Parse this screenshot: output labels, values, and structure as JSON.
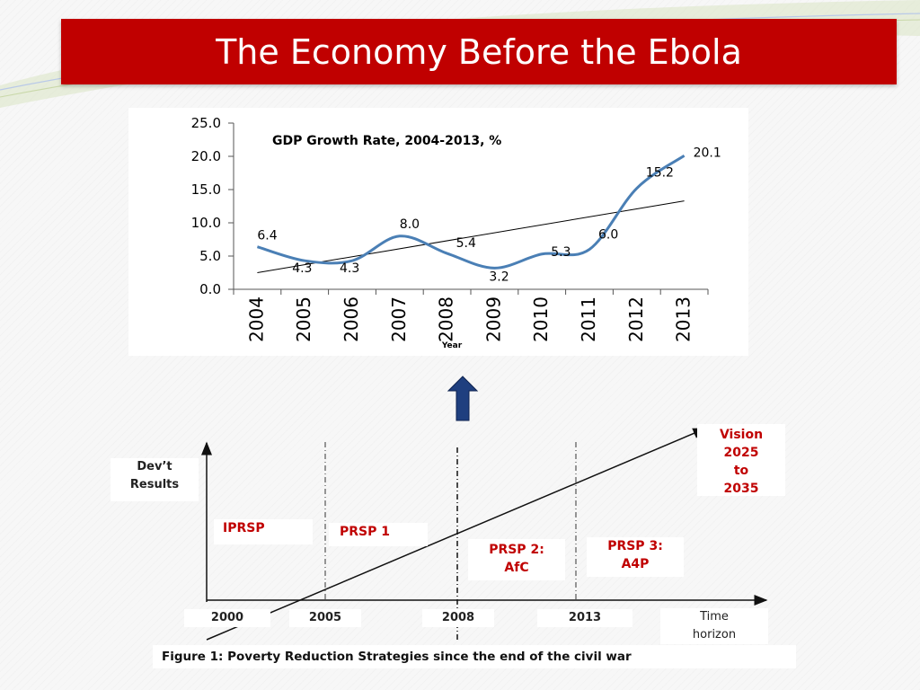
{
  "slide": {
    "title": "The Economy Before the Ebola"
  },
  "colors": {
    "title_bar": "#c00000",
    "series_line": "#4a7fb5",
    "trend_line": "#000000",
    "arrow": "#1f3f7f",
    "label_red": "#c00000"
  },
  "chart_data": [
    {
      "type": "line",
      "title": "GDP Growth Rate, 2004-2013, %",
      "xlabel": "Year",
      "ylabel": "",
      "ylim": [
        0,
        25
      ],
      "yticks": [
        "0.0",
        "5.0",
        "10.0",
        "15.0",
        "20.0",
        "25.0"
      ],
      "categories": [
        "2004",
        "2005",
        "2006",
        "2007",
        "2008",
        "2009",
        "2010",
        "2011",
        "2012",
        "2013"
      ],
      "series": [
        {
          "values": [
            6.4,
            4.3,
            4.3,
            8.0,
            5.4,
            3.2,
            5.3,
            6.0,
            15.2,
            20.1
          ]
        }
      ],
      "data_labels": [
        "6.4",
        "4.3",
        "4.3",
        "8.0",
        "5.4",
        "3.2",
        "5.3",
        "6.0",
        "15.2",
        "20.1"
      ],
      "trendline": {
        "type": "linear",
        "start": 2.5,
        "end": 13.3
      },
      "grid": false,
      "legend": "none"
    },
    {
      "type": "diagram",
      "caption": "Figure 1: Poverty Reduction Strategies since the end of the civil war",
      "y_axis_label": "Dev’t Results",
      "x_axis_label": "Time horizon",
      "x_ticks": [
        "2000",
        "2005",
        "2008",
        "2013"
      ],
      "phases": [
        {
          "label": "IPRSP"
        },
        {
          "label": "PRSP 1"
        },
        {
          "label": "PRSP 2: AfC"
        },
        {
          "label": "PRSP 3: A4P"
        }
      ],
      "target": "Vision 2025 to 2035"
    }
  ]
}
